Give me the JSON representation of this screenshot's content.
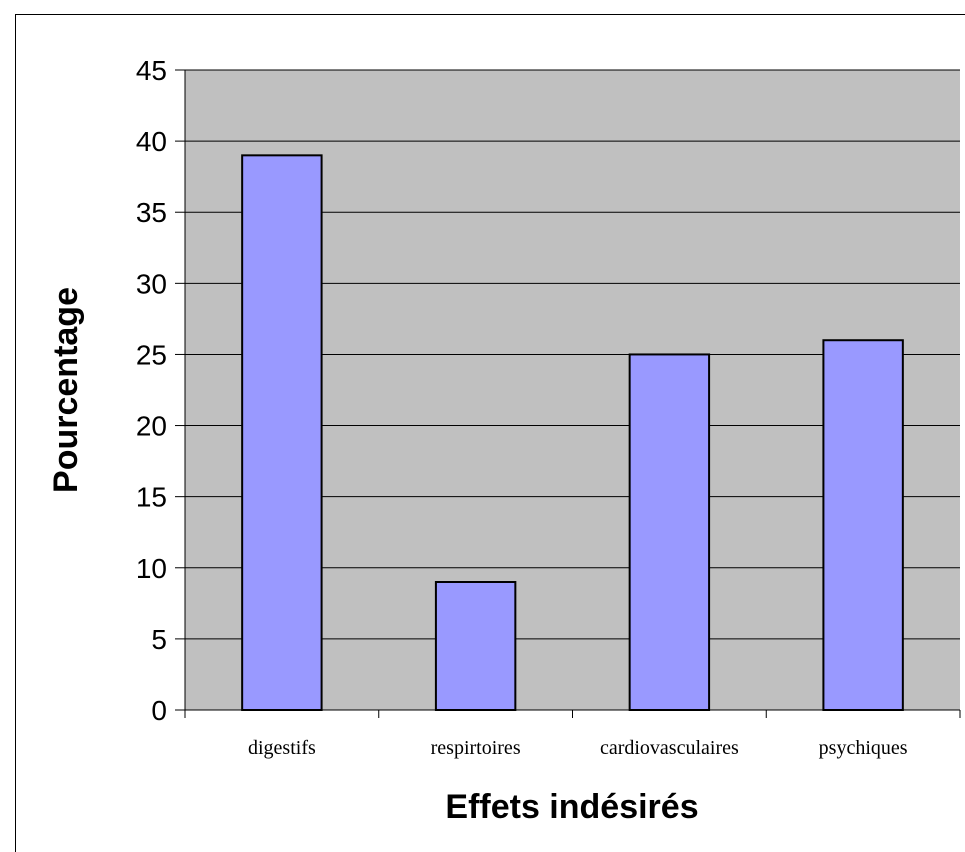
{
  "chart_data": {
    "type": "bar",
    "title": "",
    "xlabel": "Effets indésirés",
    "ylabel": "Pourcentage",
    "categories": [
      "digestifs",
      "respirtoires",
      "cardiovasculaires",
      "psychiques"
    ],
    "values": [
      39,
      9,
      25,
      26
    ],
    "ylim": [
      0,
      45
    ],
    "yticks": [
      "0",
      "5",
      "10",
      "15",
      "20",
      "25",
      "30",
      "35",
      "40",
      "45"
    ],
    "grid": true,
    "legend": "none",
    "colors": {
      "bar_fill": "#9999ff",
      "bar_stroke": "#000000",
      "plot_background": "#c0c0c0",
      "gridline": "#000000"
    }
  }
}
